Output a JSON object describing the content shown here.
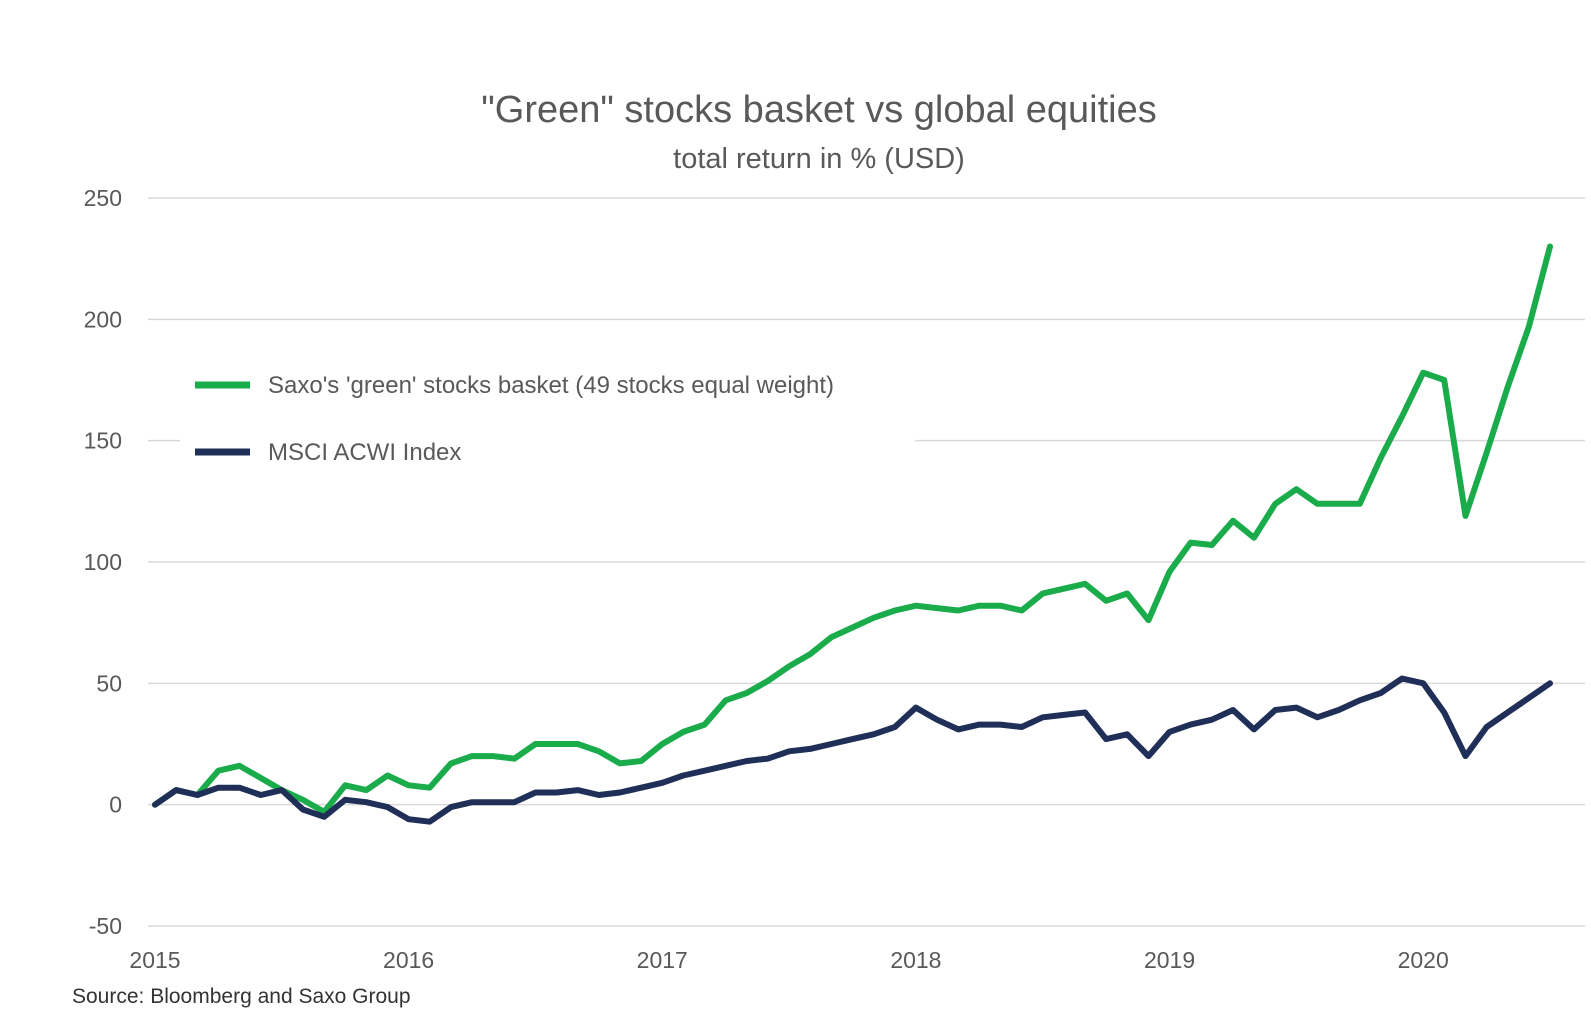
{
  "chart_data": {
    "type": "line",
    "title": "\"Green\" stocks basket vs global equities",
    "subtitle": "total return in % (USD)",
    "source": "Source: Bloomberg and Saxo Group",
    "ylim": [
      -50,
      250
    ],
    "y_ticks": [
      250,
      200,
      150,
      100,
      50,
      0,
      -50
    ],
    "xlim": [
      2015,
      2020.5
    ],
    "x_ticks": [
      2015,
      2016,
      2017,
      2018,
      2019,
      2020
    ],
    "x_tick_labels": [
      "2015",
      "2016",
      "2017",
      "2018",
      "2019",
      "2020"
    ],
    "grid": true,
    "legend_position": "upper-left",
    "x": [
      2015.0,
      2015.083,
      2015.167,
      2015.25,
      2015.333,
      2015.417,
      2015.5,
      2015.583,
      2015.667,
      2015.75,
      2015.833,
      2015.917,
      2016.0,
      2016.083,
      2016.167,
      2016.25,
      2016.333,
      2016.417,
      2016.5,
      2016.583,
      2016.667,
      2016.75,
      2016.833,
      2016.917,
      2017.0,
      2017.083,
      2017.167,
      2017.25,
      2017.333,
      2017.417,
      2017.5,
      2017.583,
      2017.667,
      2017.75,
      2017.833,
      2017.917,
      2018.0,
      2018.083,
      2018.167,
      2018.25,
      2018.333,
      2018.417,
      2018.5,
      2018.583,
      2018.667,
      2018.75,
      2018.833,
      2018.917,
      2019.0,
      2019.083,
      2019.167,
      2019.25,
      2019.333,
      2019.417,
      2019.5,
      2019.583,
      2019.667,
      2019.75,
      2019.833,
      2019.917,
      2020.0,
      2020.083,
      2020.167,
      2020.25,
      2020.333,
      2020.417,
      2020.5
    ],
    "series": [
      {
        "name": "Saxo's 'green' stocks basket (49 stocks equal weight)",
        "color": "#1aab4a",
        "values": [
          0,
          6,
          4,
          14,
          16,
          11,
          6,
          2,
          -3,
          8,
          6,
          12,
          8,
          7,
          17,
          20,
          20,
          19,
          25,
          25,
          25,
          22,
          17,
          18,
          25,
          30,
          33,
          43,
          46,
          51,
          57,
          62,
          69,
          73,
          77,
          80,
          82,
          81,
          80,
          82,
          82,
          80,
          87,
          89,
          91,
          84,
          87,
          76,
          96,
          108,
          107,
          117,
          110,
          124,
          130,
          124,
          124,
          124,
          143,
          160,
          178,
          175,
          119,
          145,
          172,
          197,
          230
        ]
      },
      {
        "name": "MSCI ACWI Index",
        "color": "#1f2f57",
        "values": [
          0,
          6,
          4,
          7,
          7,
          4,
          6,
          -2,
          -5,
          2,
          1,
          -1,
          -6,
          -7,
          -1,
          1,
          1,
          1,
          5,
          5,
          6,
          4,
          5,
          7,
          9,
          12,
          14,
          16,
          18,
          19,
          22,
          23,
          25,
          27,
          29,
          32,
          40,
          35,
          31,
          33,
          33,
          32,
          36,
          37,
          38,
          27,
          29,
          20,
          30,
          33,
          35,
          39,
          31,
          39,
          40,
          36,
          39,
          43,
          46,
          52,
          50,
          38,
          20,
          32,
          38,
          44,
          50
        ]
      }
    ]
  }
}
